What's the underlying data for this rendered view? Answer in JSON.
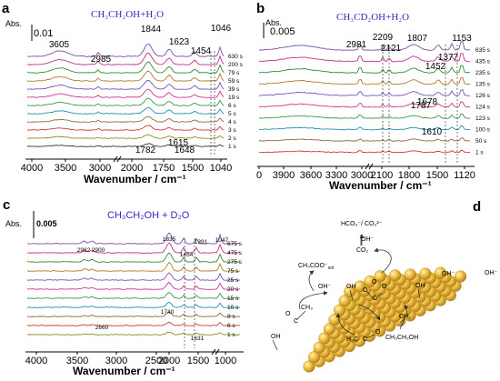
{
  "panels": [
    {
      "letter": "a",
      "title": "CH₃CH₂OH+H₂O",
      "scale_label": "Abs.",
      "scale_value": "0.01",
      "xlabel": "Wavenumber / cm⁻¹",
      "ticks_left": [
        "4000",
        "3500",
        "3000"
      ],
      "ticks_right": [
        "2000",
        "1750",
        "1500",
        "1040"
      ],
      "time_labels": [
        "630 s",
        "200 s",
        "79 s",
        "59 s",
        "39 s",
        "19 s",
        "6 s",
        "5 s",
        "4 s",
        "3 s",
        "2 s",
        "1 s"
      ],
      "peak_labels_top": [
        "3605",
        "2985",
        "1844",
        "1623",
        "1454",
        "1046"
      ],
      "peak_labels_bottom": [
        "1615",
        "1782",
        "1648"
      ]
    },
    {
      "letter": "b",
      "title": "CH₃CD₂OH+H₂O",
      "scale_label": "Abs.",
      "scale_value": "0.005",
      "xlabel": "Wavenumber / cm⁻¹",
      "ticks_left": [
        "0",
        "3900",
        "3600",
        "3300",
        "3000"
      ],
      "ticks_right": [
        "2100",
        "1800",
        "1500",
        "1120"
      ],
      "time_labels": [
        "635 s",
        "435 s",
        "235 s",
        "135 s",
        "126 s",
        "124 s",
        "123 s",
        "100 s",
        "50 s",
        "1 s"
      ],
      "peak_labels_top": [
        "2981",
        "2209",
        "2121",
        "1807",
        "1452",
        "1377",
        "1153"
      ],
      "peak_labels_bottom": [
        "1787",
        "1678",
        "1610"
      ]
    },
    {
      "letter": "c",
      "title": "CH₃CH₂OH + D₂O",
      "scale_label": "Abs.",
      "scale_value": "0.005",
      "xlabel": "Wavenumber / cm⁻¹",
      "ticks_left": [
        "4000",
        "3500",
        "3000",
        "2500",
        "2000",
        "1500"
      ],
      "ticks_right": [
        "1000"
      ],
      "time_labels": [
        "675 s",
        "475 s",
        "275 s",
        "75 s",
        "25 s",
        "20 s",
        "15 s",
        "10 s",
        "8 s",
        "6 s",
        "1 s"
      ],
      "peak_labels_top": [
        "2982",
        "2900",
        "1835",
        "1454",
        "1391",
        "1047"
      ],
      "peak_labels_bottom": [
        "1740",
        "2660",
        "1631"
      ]
    },
    {
      "letter": "d"
    }
  ],
  "diagram": {
    "top_species": "HCO₃⁻/ CO₃²⁻",
    "oh_top": "OH⁻",
    "co2": "CO₂",
    "acetate": "CH₃COO⁻",
    "acetate_sub": "sol",
    "oh": "OH⁻",
    "oh_surface": "OH",
    "ch3": "CH₃",
    "ch2": "CH₂",
    "h3c": "H₃C",
    "c": "C",
    "o": "O",
    "ethanol": "CH₃CH₂OH"
  },
  "chart_data": [
    {
      "type": "line",
      "panel": "a",
      "title": "CH3CH2OH+H2O",
      "xlabel": "Wavenumber / cm-1",
      "ylabel": "Abs.",
      "x_reversed": true,
      "x_break": [
        2985,
        2000
      ],
      "series_names": [
        "630 s",
        "200 s",
        "79 s",
        "59 s",
        "39 s",
        "19 s",
        "6 s",
        "5 s",
        "4 s",
        "3 s",
        "2 s",
        "1 s"
      ],
      "peaks_cm": [
        3605,
        2985,
        1844,
        1782,
        1648,
        1623,
        1615,
        1454,
        1046
      ]
    },
    {
      "type": "line",
      "panel": "b",
      "title": "CH3CD2OH+H2O",
      "xlabel": "Wavenumber / cm-1",
      "ylabel": "Abs.",
      "x_reversed": true,
      "x_break": [
        3000,
        2209
      ],
      "series_names": [
        "635 s",
        "435 s",
        "235 s",
        "135 s",
        "126 s",
        "124 s",
        "123 s",
        "100 s",
        "50 s",
        "1 s"
      ],
      "peaks_cm": [
        2981,
        2209,
        2121,
        1807,
        1787,
        1678,
        1610,
        1452,
        1377,
        1153
      ]
    },
    {
      "type": "line",
      "panel": "c",
      "title": "CH3CH2OH + D2O",
      "xlabel": "Wavenumber / cm-1",
      "ylabel": "Abs.",
      "x_reversed": true,
      "x_break": [
        1200,
        1050
      ],
      "series_names": [
        "675 s",
        "475 s",
        "275 s",
        "75 s",
        "25 s",
        "20 s",
        "15 s",
        "10 s",
        "8 s",
        "6 s",
        "1 s"
      ],
      "peaks_cm": [
        2982,
        2900,
        2660,
        1835,
        1740,
        1631,
        1454,
        1391,
        1047
      ]
    }
  ]
}
